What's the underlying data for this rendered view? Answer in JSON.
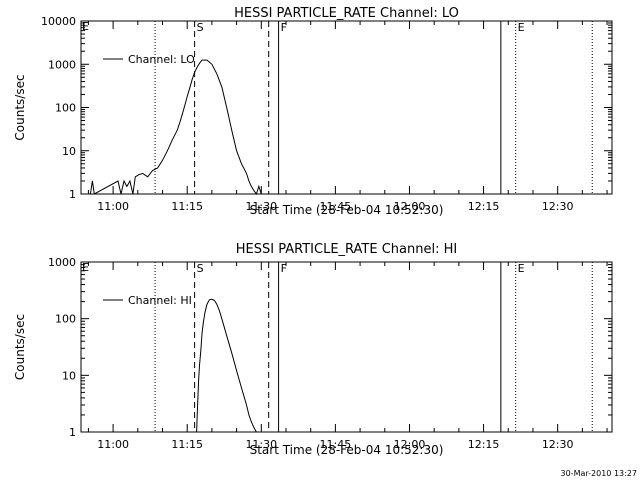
{
  "footer": {
    "timestamp": "30-Mar-2010 13:27"
  },
  "chart_data": [
    {
      "type": "line",
      "title": "HESSI PARTICLE_RATE Channel: LO",
      "xlabel": "Start Time (28-Feb-04 10:52:30)",
      "ylabel": "Counts/sec",
      "yscale": "log",
      "ylim": [
        1,
        10000
      ],
      "xlim_minutes": [
        -6.5,
        101.0
      ],
      "x_tick_minutes": [
        0,
        15,
        30,
        45,
        60,
        75,
        90
      ],
      "x_tick_labels": [
        "11:00",
        "11:15",
        "11:30",
        "11:45",
        "12:00",
        "12:15",
        "12:30"
      ],
      "y_tick_values": [
        1,
        10,
        100,
        1000,
        10000
      ],
      "y_tick_labels": [
        "1",
        "10",
        "100",
        "1000",
        "10000"
      ],
      "legend": {
        "label": "Channel: LO",
        "placement": "top-left"
      },
      "x_unit": "minutes after 11:00",
      "series": [
        {
          "name": "Channel: LO",
          "x": [
            -4.6,
            -4.2,
            -3.8,
            1.0,
            1.6,
            2.2,
            2.8,
            3.4,
            4.0,
            4.5,
            5.2,
            6.0,
            7.0,
            8.0,
            9.0,
            10.0,
            11.0,
            12.0,
            13.0,
            13.5,
            14.0,
            14.5,
            15.0,
            15.5,
            16.0,
            16.5,
            17.0,
            17.5,
            18.0,
            19.0,
            20.0,
            21.0,
            22.0,
            23.0,
            24.0,
            25.0,
            26.0,
            27.0,
            27.5,
            28.0,
            28.5,
            29.0,
            29.5,
            30.0,
            30.5
          ],
          "y": [
            1,
            2,
            1,
            2,
            1,
            2,
            1.5,
            2,
            1,
            2.5,
            2.8,
            3,
            2.5,
            3.5,
            4,
            6,
            10,
            18,
            30,
            45,
            70,
            110,
            180,
            280,
            440,
            650,
            850,
            1050,
            1250,
            1250,
            1000,
            600,
            300,
            100,
            30,
            10,
            5,
            3,
            2,
            1.5,
            1.2,
            1,
            1.5,
            1,
            1
          ]
        }
      ],
      "markers": [
        {
          "label": "S",
          "minutes": 16.5,
          "style": "dashed"
        },
        {
          "label": "",
          "minutes": 31.5,
          "style": "dashed"
        },
        {
          "label": "F",
          "minutes": 33.5,
          "style": "solid"
        },
        {
          "label": "",
          "minutes": 78.5,
          "style": "solid"
        },
        {
          "label": "E",
          "minutes": 81.5,
          "style": "dotted"
        },
        {
          "label": "",
          "minutes": 8.5,
          "style": "dotted"
        },
        {
          "label": "",
          "minutes": 97.0,
          "style": "dotted"
        }
      ],
      "corner_label": "E"
    },
    {
      "type": "line",
      "title": "HESSI PARTICLE_RATE Channel: HI",
      "xlabel": "Start Time (28-Feb-04 10:52:30)",
      "ylabel": "Counts/sec",
      "yscale": "log",
      "ylim": [
        1,
        1000
      ],
      "xlim_minutes": [
        -6.5,
        101.0
      ],
      "x_tick_minutes": [
        0,
        15,
        30,
        45,
        60,
        75,
        90
      ],
      "x_tick_labels": [
        "11:00",
        "11:15",
        "11:30",
        "11:45",
        "12:00",
        "12:15",
        "12:30"
      ],
      "y_tick_values": [
        1,
        10,
        100,
        1000
      ],
      "y_tick_labels": [
        "1",
        "10",
        "100",
        "1000"
      ],
      "legend": {
        "label": "Channel: HI",
        "placement": "top-left"
      },
      "x_unit": "minutes after 11:00",
      "series": [
        {
          "name": "Channel: HI",
          "x": [
            16.9,
            17.1,
            17.3,
            17.5,
            17.8,
            18.0,
            18.3,
            18.6,
            19.0,
            19.5,
            20.0,
            20.5,
            21.0,
            21.5,
            22.0,
            23.0,
            24.0,
            25.0,
            26.0,
            27.0,
            27.5,
            28.0,
            28.5,
            29.0
          ],
          "y": [
            1,
            3,
            8,
            15,
            30,
            55,
            90,
            130,
            180,
            215,
            220,
            210,
            180,
            140,
            100,
            50,
            25,
            12,
            6,
            3,
            2,
            1.5,
            1.2,
            1
          ]
        }
      ],
      "markers": [
        {
          "label": "S",
          "minutes": 16.5,
          "style": "dashed"
        },
        {
          "label": "",
          "minutes": 31.5,
          "style": "dashed"
        },
        {
          "label": "F",
          "minutes": 33.5,
          "style": "solid"
        },
        {
          "label": "",
          "minutes": 78.5,
          "style": "solid"
        },
        {
          "label": "E",
          "minutes": 81.5,
          "style": "dotted"
        },
        {
          "label": "",
          "minutes": 8.5,
          "style": "dotted"
        },
        {
          "label": "",
          "minutes": 97.0,
          "style": "dotted"
        }
      ],
      "corner_label": "E"
    }
  ]
}
